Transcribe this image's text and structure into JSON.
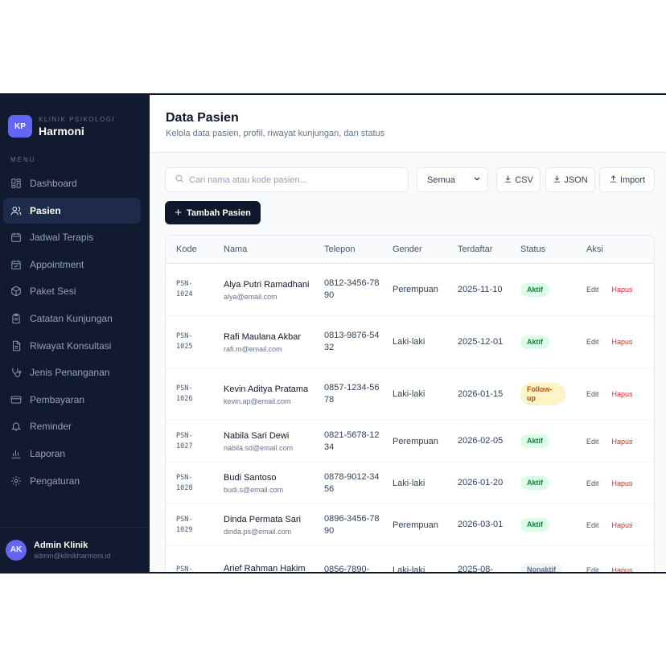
{
  "brand": {
    "logo": "KP",
    "subtitle": "KLINIK PSIKOLOGI",
    "name": "Harmoni"
  },
  "menu_title": "MENU",
  "menu": [
    {
      "label": "Dashboard",
      "icon": "dashboard-icon",
      "active": false
    },
    {
      "label": "Pasien",
      "icon": "users-icon",
      "active": true
    },
    {
      "label": "Jadwal Terapis",
      "icon": "calendar-icon",
      "active": false
    },
    {
      "label": "Appointment",
      "icon": "calendar-check-icon",
      "active": false
    },
    {
      "label": "Paket Sesi",
      "icon": "package-icon",
      "active": false
    },
    {
      "label": "Catatan Kunjungan",
      "icon": "clipboard-icon",
      "active": false
    },
    {
      "label": "Riwayat Konsultasi",
      "icon": "document-icon",
      "active": false
    },
    {
      "label": "Jenis Penanganan",
      "icon": "stethoscope-icon",
      "active": false
    },
    {
      "label": "Pembayaran",
      "icon": "credit-card-icon",
      "active": false
    },
    {
      "label": "Reminder",
      "icon": "bell-icon",
      "active": false
    },
    {
      "label": "Laporan",
      "icon": "bar-chart-icon",
      "active": false
    },
    {
      "label": "Pengaturan",
      "icon": "gear-icon",
      "active": false
    }
  ],
  "user": {
    "initials": "AK",
    "name": "Admin Klinik",
    "email": "admin@klinikharmoni.id"
  },
  "header": {
    "title": "Data Pasien",
    "subtitle": "Kelola data pasien, profil, riwayat kunjungan, dan status"
  },
  "search": {
    "placeholder": "Cari nama atau kode pasien..."
  },
  "filter": {
    "selected": "Semua"
  },
  "toolbar": {
    "csv": "CSV",
    "json": "JSON",
    "import": "Import",
    "add": "Tambah Pasien"
  },
  "table": {
    "headers": {
      "kode": "Kode",
      "nama": "Nama",
      "telepon": "Telepon",
      "gender": "Gender",
      "terdaftar": "Terdaftar",
      "status": "Status",
      "aksi": "Aksi"
    },
    "actions": {
      "edit": "Edit",
      "hapus": "Hapus"
    },
    "rows": [
      {
        "kode": "PSN-1024",
        "nama": "Alya Putri Ramadhani",
        "email": "alya@email.com",
        "telepon": "0812-3456-7890",
        "gender": "Perempuan",
        "terdaftar": "2025-11-10",
        "status": "Aktif"
      },
      {
        "kode": "PSN-1025",
        "nama": "Rafi Maulana Akbar",
        "email": "rafi.m@email.com",
        "telepon": "0813-9876-5432",
        "gender": "Laki-laki",
        "terdaftar": "2025-12-01",
        "status": "Aktif"
      },
      {
        "kode": "PSN-1026",
        "nama": "Kevin Aditya Pratama",
        "email": "kevin.ap@email.com",
        "telepon": "0857-1234-5678",
        "gender": "Laki-laki",
        "terdaftar": "2026-01-15",
        "status": "Follow-up"
      },
      {
        "kode": "PSN-1027",
        "nama": "Nabila Sari Dewi",
        "email": "nabila.sd@email.com",
        "telepon": "0821-5678-1234",
        "gender": "Perempuan",
        "terdaftar": "2026-02-05",
        "status": "Aktif"
      },
      {
        "kode": "PSN-1028",
        "nama": "Budi Santoso",
        "email": "budi.s@email.com",
        "telepon": "0878-9012-3456",
        "gender": "Laki-laki",
        "terdaftar": "2026-01-20",
        "status": "Aktif"
      },
      {
        "kode": "PSN-1029",
        "nama": "Dinda Permata Sari",
        "email": "dinda.ps@email.com",
        "telepon": "0896-3456-7890",
        "gender": "Perempuan",
        "terdaftar": "2026-03-01",
        "status": "Aktif"
      },
      {
        "kode": "PSN-",
        "nama": "Arief Rahman Hakim",
        "email": "",
        "telepon": "0856-7890-",
        "gender": "Laki-laki",
        "terdaftar": "2025-08-",
        "status": "Nonaktif"
      }
    ]
  },
  "colors": {
    "sidebar_bg": "#111a2e",
    "accent": "#6366f1",
    "primary_button": "#0f172a",
    "danger": "#dc2626"
  }
}
